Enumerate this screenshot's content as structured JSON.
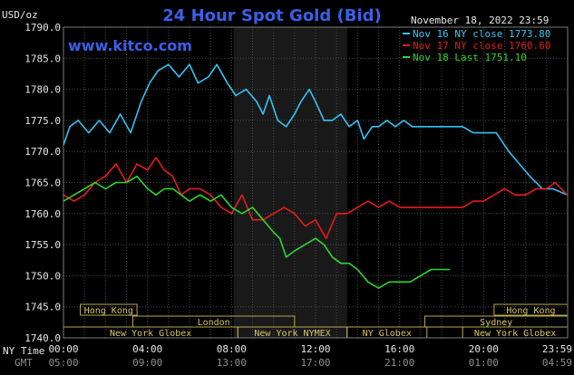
{
  "chart_data": {
    "type": "line",
    "title": "24 Hour Spot Gold (Bid)",
    "website": "www.kitco.com",
    "date_label": "November 18, 2022 23:59",
    "ylabel": "USD/oz",
    "ylim": [
      1740,
      1790
    ],
    "yticks": [
      "1740.0",
      "1745.0",
      "1750.0",
      "1755.0",
      "1760.0",
      "1765.0",
      "1770.0",
      "1775.0",
      "1780.0",
      "1785.0",
      "1790.0"
    ],
    "xticks": [
      {
        "h": 0,
        "ny": "00:00",
        "gmt": "05:00"
      },
      {
        "h": 4,
        "ny": "04:00",
        "gmt": "09:00"
      },
      {
        "h": 8,
        "ny": "08:00",
        "gmt": "13:00"
      },
      {
        "h": 12,
        "ny": "12:00",
        "gmt": "17:00"
      },
      {
        "h": 16,
        "ny": "16:00",
        "gmt": "21:00"
      },
      {
        "h": 20,
        "ny": "20:00",
        "gmt": "01:00"
      },
      {
        "h": 23.98,
        "ny": "23:59",
        "gmt": "04:59"
      }
    ],
    "time_axis_labels": {
      "ny": "NY Time",
      "gmt": "GMT"
    },
    "grid": true,
    "legend_placement": "top-right",
    "shaded_session": [
      8.1,
      13.5
    ],
    "markets": [
      {
        "name": "Hong Kong",
        "start": 0.8,
        "end": 3.5,
        "row": 0
      },
      {
        "name": "Hong Kong",
        "start": 20.5,
        "end": 24,
        "row": 0
      },
      {
        "name": "London",
        "start": 3.3,
        "end": 11.0,
        "row": 1
      },
      {
        "name": "Sydney",
        "start": 17.2,
        "end": 24,
        "row": 1
      },
      {
        "name": "New York Globex",
        "start": 0,
        "end": 8.3,
        "row": 2
      },
      {
        "name": "New York NYMEX",
        "start": 8.3,
        "end": 13.5,
        "row": 2
      },
      {
        "name": "NY Globex",
        "start": 13.5,
        "end": 17.3,
        "row": 2
      },
      {
        "name": "New York Globex",
        "start": 19.0,
        "end": 24,
        "row": 2
      }
    ],
    "series": [
      {
        "name": "Nov 16 NY close 1773.80",
        "color": "#34c4f4",
        "points": [
          [
            0,
            1771
          ],
          [
            0.3,
            1774
          ],
          [
            0.7,
            1775
          ],
          [
            1.2,
            1773
          ],
          [
            1.7,
            1775
          ],
          [
            2.2,
            1773
          ],
          [
            2.7,
            1776
          ],
          [
            3.2,
            1773
          ],
          [
            3.7,
            1778
          ],
          [
            4.1,
            1781
          ],
          [
            4.5,
            1783
          ],
          [
            5.0,
            1784
          ],
          [
            5.5,
            1782
          ],
          [
            6.0,
            1784
          ],
          [
            6.4,
            1781
          ],
          [
            6.9,
            1782
          ],
          [
            7.3,
            1784
          ],
          [
            7.8,
            1781
          ],
          [
            8.2,
            1779
          ],
          [
            8.7,
            1780
          ],
          [
            9.2,
            1778
          ],
          [
            9.5,
            1776
          ],
          [
            9.8,
            1779
          ],
          [
            10.2,
            1775
          ],
          [
            10.6,
            1774
          ],
          [
            11.0,
            1776
          ],
          [
            11.3,
            1778
          ],
          [
            11.7,
            1780
          ],
          [
            12.0,
            1778
          ],
          [
            12.4,
            1775
          ],
          [
            12.8,
            1775
          ],
          [
            13.2,
            1776
          ],
          [
            13.6,
            1774
          ],
          [
            14.0,
            1775
          ],
          [
            14.3,
            1772
          ],
          [
            14.7,
            1774
          ],
          [
            15.0,
            1774
          ],
          [
            15.4,
            1775
          ],
          [
            15.8,
            1774
          ],
          [
            16.2,
            1775
          ],
          [
            16.6,
            1774
          ],
          [
            17.0,
            1774
          ],
          [
            18.0,
            1774
          ],
          [
            19.0,
            1774
          ],
          [
            19.5,
            1773
          ],
          [
            20.0,
            1773
          ],
          [
            20.6,
            1773
          ],
          [
            21.2,
            1770
          ],
          [
            21.7,
            1768
          ],
          [
            22.2,
            1766
          ],
          [
            22.8,
            1764
          ],
          [
            23.3,
            1764
          ],
          [
            23.98,
            1763
          ]
        ]
      },
      {
        "name": "Nov 17 NY close 1760.60",
        "color": "#e81a1a",
        "points": [
          [
            0,
            1763
          ],
          [
            0.5,
            1762
          ],
          [
            1.0,
            1763
          ],
          [
            1.5,
            1765
          ],
          [
            2.0,
            1766
          ],
          [
            2.5,
            1768
          ],
          [
            3.0,
            1765
          ],
          [
            3.5,
            1768
          ],
          [
            4.0,
            1767
          ],
          [
            4.4,
            1769
          ],
          [
            4.8,
            1767
          ],
          [
            5.2,
            1766
          ],
          [
            5.6,
            1763
          ],
          [
            6.0,
            1764
          ],
          [
            6.5,
            1764
          ],
          [
            7.0,
            1763
          ],
          [
            7.5,
            1761
          ],
          [
            8.0,
            1760
          ],
          [
            8.5,
            1763
          ],
          [
            9.0,
            1759
          ],
          [
            9.5,
            1759
          ],
          [
            10.0,
            1760
          ],
          [
            10.5,
            1761
          ],
          [
            11.0,
            1760
          ],
          [
            11.5,
            1758
          ],
          [
            12.0,
            1759
          ],
          [
            12.5,
            1756
          ],
          [
            13.0,
            1760
          ],
          [
            13.5,
            1760
          ],
          [
            14.0,
            1761
          ],
          [
            14.5,
            1762
          ],
          [
            15.0,
            1761
          ],
          [
            15.5,
            1762
          ],
          [
            16.0,
            1761
          ],
          [
            17.0,
            1761
          ],
          [
            18.0,
            1761
          ],
          [
            19.0,
            1761
          ],
          [
            19.5,
            1762
          ],
          [
            20.0,
            1762
          ],
          [
            20.5,
            1763
          ],
          [
            21.0,
            1764
          ],
          [
            21.5,
            1763
          ],
          [
            22.0,
            1763
          ],
          [
            22.5,
            1764
          ],
          [
            23.0,
            1764
          ],
          [
            23.4,
            1765
          ],
          [
            23.98,
            1763
          ]
        ]
      },
      {
        "name": "Nov 18 Last 1751.10",
        "color": "#2ed62e",
        "points": [
          [
            0,
            1762
          ],
          [
            0.5,
            1763
          ],
          [
            1.0,
            1764
          ],
          [
            1.5,
            1765
          ],
          [
            2.0,
            1764
          ],
          [
            2.5,
            1765
          ],
          [
            3.0,
            1765
          ],
          [
            3.5,
            1766
          ],
          [
            4.0,
            1764
          ],
          [
            4.4,
            1763
          ],
          [
            4.8,
            1764
          ],
          [
            5.2,
            1764
          ],
          [
            5.6,
            1763
          ],
          [
            6.0,
            1762
          ],
          [
            6.5,
            1763
          ],
          [
            7.0,
            1762
          ],
          [
            7.5,
            1763
          ],
          [
            8.0,
            1761
          ],
          [
            8.5,
            1760
          ],
          [
            9.0,
            1761
          ],
          [
            9.5,
            1759
          ],
          [
            10.0,
            1757
          ],
          [
            10.3,
            1756
          ],
          [
            10.6,
            1753
          ],
          [
            11.0,
            1754
          ],
          [
            11.5,
            1755
          ],
          [
            12.0,
            1756
          ],
          [
            12.4,
            1755
          ],
          [
            12.8,
            1753
          ],
          [
            13.2,
            1752
          ],
          [
            13.6,
            1752
          ],
          [
            14.0,
            1751
          ],
          [
            14.5,
            1749
          ],
          [
            15.0,
            1748
          ],
          [
            15.5,
            1749
          ],
          [
            16.0,
            1749
          ],
          [
            16.5,
            1749
          ],
          [
            17.0,
            1750
          ],
          [
            17.5,
            1751
          ],
          [
            18.0,
            1751
          ],
          [
            18.4,
            1751
          ]
        ]
      }
    ]
  }
}
